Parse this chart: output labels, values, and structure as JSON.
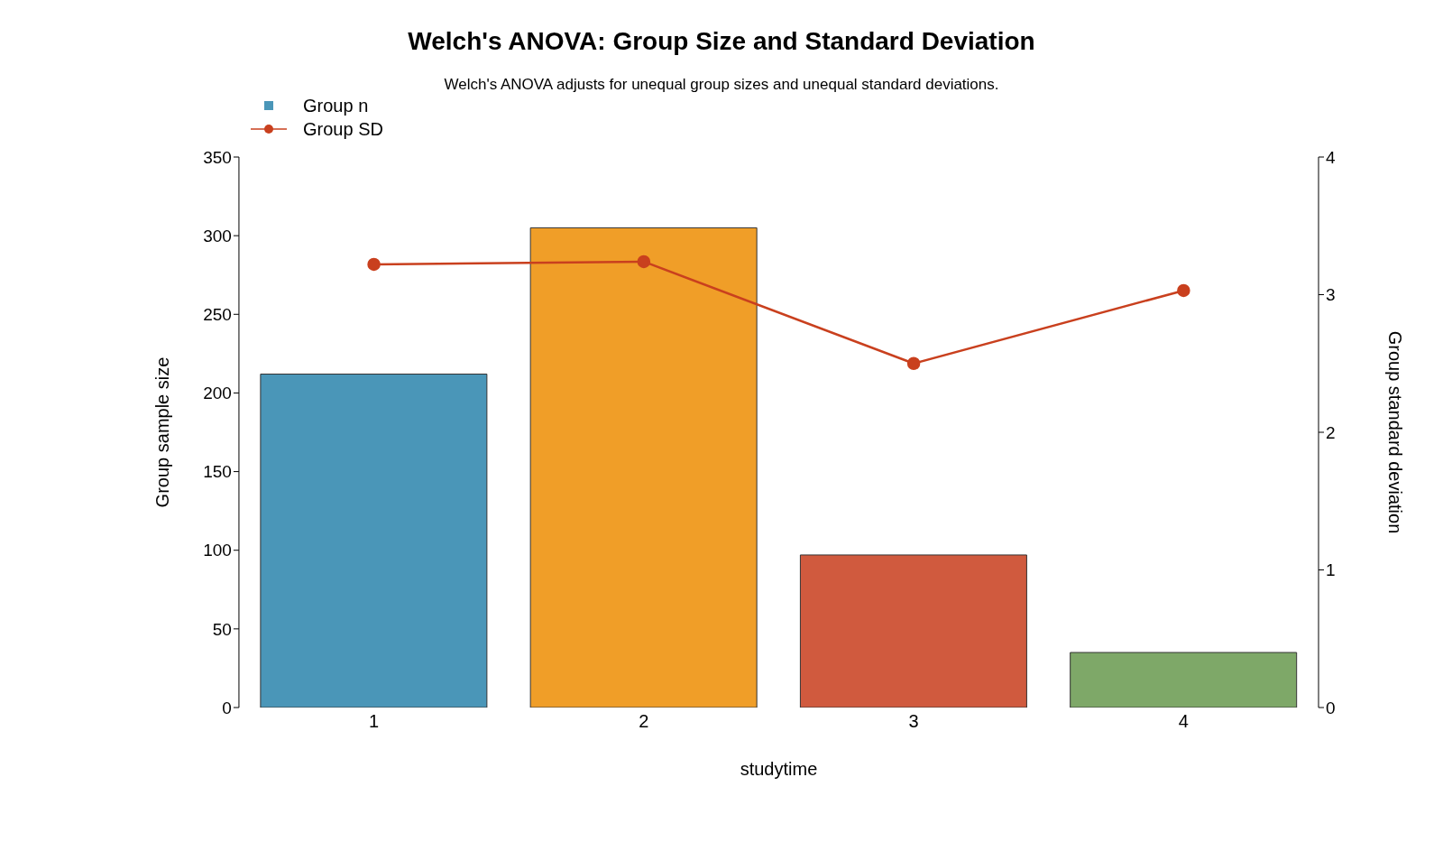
{
  "chart_data": {
    "type": "bar",
    "title": "Welch's ANOVA: Group Size and Standard Deviation",
    "subtitle": "Welch's ANOVA adjusts for unequal group sizes and unequal standard deviations.",
    "xlabel": "studytime",
    "ylabel": "Group sample size",
    "y2label": "Group standard deviation",
    "categories": [
      "1",
      "2",
      "3",
      "4"
    ],
    "series": [
      {
        "name": "Group n",
        "color": "#4a96b8",
        "colors": [
          "#4a96b8",
          "#f09e28",
          "#d05a3e",
          "#7ea868"
        ],
        "values": [
          212,
          305,
          97,
          35
        ]
      },
      {
        "name": "Group SD",
        "type": "line",
        "axis": "y2",
        "color": "#c9401e",
        "marker": "circle",
        "values": [
          3.22,
          3.24,
          2.5,
          3.03
        ]
      }
    ],
    "ylim": [
      0,
      350
    ],
    "yticks": [
      0,
      50,
      100,
      150,
      200,
      250,
      300,
      350
    ],
    "y2lim": [
      0,
      4
    ],
    "y2ticks": [
      0,
      1,
      2,
      3,
      4
    ],
    "legend": "top left"
  }
}
